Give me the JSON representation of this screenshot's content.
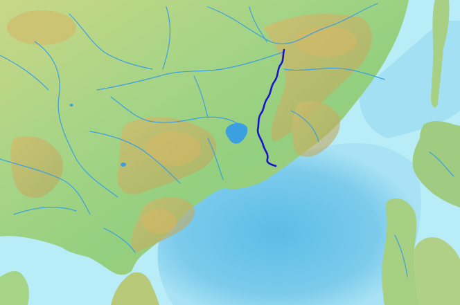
{
  "map": {
    "colors": {
      "sea_shallow": "#b8ecf7",
      "sea": "#8fd6ef",
      "sea_deep": "#5bbde6",
      "lowland": "#92cf7e",
      "upland": "#c9d787",
      "highland": "#d9b96a",
      "tributary": "#3aa0e0",
      "highlighted_river": "#1a14c8",
      "lake": "#3aa0e0"
    },
    "layers": [
      "sea",
      "land",
      "rivers",
      "lakes",
      "highlighted-river"
    ]
  }
}
